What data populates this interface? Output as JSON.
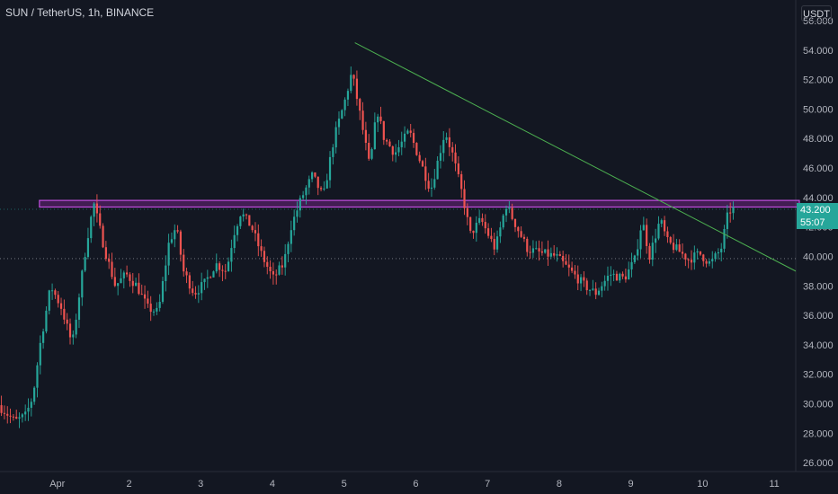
{
  "header": {
    "symbol_title": "SUN / TetherUS, 1h, BINANCE"
  },
  "price_scale": {
    "currency": "USDT"
  },
  "last_price": {
    "price": "43.200",
    "countdown": "55:07"
  },
  "colors": {
    "background": "#131722",
    "bull": "#26a69a",
    "bear": "#ef5350",
    "resistance_zone": "#9c27b0",
    "trendline": "#4caf50",
    "grid_text": "#b2b5be"
  },
  "chart_data": {
    "type": "candlestick",
    "title": "SUN / TetherUS, 1h, BINANCE",
    "ylabel": "USDT",
    "ylim": [
      25.4,
      57.4
    ],
    "y_ticks": [
      "26.000",
      "28.000",
      "30.000",
      "32.000",
      "34.000",
      "36.000",
      "38.000",
      "40.000",
      "42.000",
      "44.000",
      "46.000",
      "48.000",
      "50.000",
      "52.000",
      "54.000",
      "56.000"
    ],
    "x_ticks": [
      {
        "label": "Apr",
        "day": 0
      },
      {
        "label": "2",
        "day": 1
      },
      {
        "label": "3",
        "day": 2
      },
      {
        "label": "4",
        "day": 3
      },
      {
        "label": "5",
        "day": 4
      },
      {
        "label": "6",
        "day": 5
      },
      {
        "label": "7",
        "day": 6
      },
      {
        "label": "8",
        "day": 7
      },
      {
        "label": "9",
        "day": 8
      },
      {
        "label": "10",
        "day": 9
      },
      {
        "label": "11",
        "day": 10
      }
    ],
    "x_range_days": [
      -0.8,
      10.3
    ],
    "price_path": [
      [
        -0.8,
        30.0
      ],
      [
        -0.55,
        28.8
      ],
      [
        -0.4,
        29.2
      ],
      [
        -0.3,
        30.5
      ],
      [
        -0.2,
        34.0
      ],
      [
        -0.05,
        38.0
      ],
      [
        0.1,
        36.5
      ],
      [
        0.25,
        34.0
      ],
      [
        0.35,
        37.5
      ],
      [
        0.45,
        41.0
      ],
      [
        0.55,
        43.6
      ],
      [
        0.7,
        40.5
      ],
      [
        0.85,
        38.0
      ],
      [
        1.0,
        38.8
      ],
      [
        1.15,
        38.0
      ],
      [
        1.3,
        36.5
      ],
      [
        1.45,
        36.2
      ],
      [
        1.6,
        41.0
      ],
      [
        1.7,
        42.0
      ],
      [
        1.8,
        39.0
      ],
      [
        1.95,
        37.5
      ],
      [
        2.1,
        38.2
      ],
      [
        2.25,
        39.5
      ],
      [
        2.4,
        39.0
      ],
      [
        2.5,
        41.5
      ],
      [
        2.6,
        43.0
      ],
      [
        2.75,
        42.0
      ],
      [
        2.9,
        40.0
      ],
      [
        3.05,
        38.5
      ],
      [
        3.2,
        39.5
      ],
      [
        3.3,
        42.0
      ],
      [
        3.45,
        44.0
      ],
      [
        3.6,
        45.5
      ],
      [
        3.75,
        44.0
      ],
      [
        3.9,
        48.0
      ],
      [
        4.05,
        50.5
      ],
      [
        4.15,
        52.5
      ],
      [
        4.25,
        50.0
      ],
      [
        4.4,
        46.0
      ],
      [
        4.5,
        50.0
      ],
      [
        4.6,
        48.0
      ],
      [
        4.75,
        47.0
      ],
      [
        4.95,
        48.5
      ],
      [
        5.1,
        46.5
      ],
      [
        5.25,
        44.5
      ],
      [
        5.35,
        46.5
      ],
      [
        5.45,
        48.5
      ],
      [
        5.55,
        47.0
      ],
      [
        5.7,
        44.0
      ],
      [
        5.8,
        41.5
      ],
      [
        5.95,
        42.5
      ],
      [
        6.15,
        40.5
      ],
      [
        6.3,
        43.5
      ],
      [
        6.45,
        42.0
      ],
      [
        6.6,
        40.5
      ],
      [
        6.8,
        40.2
      ],
      [
        7.0,
        40.0
      ],
      [
        7.2,
        39.0
      ],
      [
        7.4,
        38.0
      ],
      [
        7.55,
        37.5
      ],
      [
        7.75,
        38.8
      ],
      [
        7.95,
        38.5
      ],
      [
        8.1,
        39.8
      ],
      [
        8.2,
        42.5
      ],
      [
        8.3,
        40.0
      ],
      [
        8.45,
        42.5
      ],
      [
        8.55,
        41.0
      ],
      [
        8.7,
        40.4
      ],
      [
        8.85,
        39.8
      ],
      [
        9.0,
        40.2
      ],
      [
        9.15,
        39.5
      ],
      [
        9.3,
        40.5
      ],
      [
        9.4,
        43.0
      ],
      [
        9.45,
        43.2
      ]
    ],
    "resistance_zone": {
      "label": "",
      "y_low": 43.35,
      "y_high": 43.8,
      "x_start_day": -0.25,
      "x_end_day": 10.35
    },
    "trendline": {
      "from": {
        "day": 4.15,
        "price": 54.5
      },
      "to": {
        "day": 10.3,
        "price": 39.0
      }
    },
    "horizontal_lines": [
      {
        "name": "last-price-line",
        "price": 43.2,
        "style": "dotted"
      },
      {
        "name": "support-line",
        "price": 39.85,
        "style": "dotted"
      }
    ]
  }
}
